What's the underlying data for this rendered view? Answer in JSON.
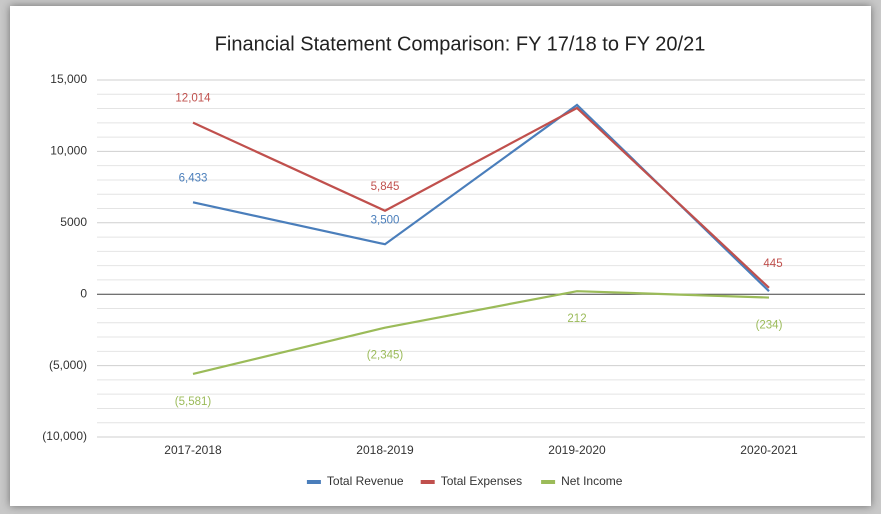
{
  "chart_data": {
    "type": "line",
    "title": "Financial Statement Comparison: FY 17/18 to FY 20/21",
    "categories": [
      "2017-2018",
      "2018-2019",
      "2019-2020",
      "2020-2021"
    ],
    "series": [
      {
        "name": "Total Revenue",
        "color": "#4a7ebb",
        "values": [
          6433,
          3500,
          13250,
          211
        ],
        "value_labels": [
          "6,433",
          "3,500",
          null,
          null
        ]
      },
      {
        "name": "Total Expenses",
        "color": "#c0504d",
        "values": [
          12014,
          5845,
          13038,
          445
        ],
        "value_labels": [
          "12,014",
          "5,845",
          null,
          "445"
        ]
      },
      {
        "name": "Net Income",
        "color": "#9bbb59",
        "values": [
          -5581,
          -2345,
          212,
          -234
        ],
        "value_labels": [
          "(5,581)",
          "(2,345)",
          "212",
          "(234)"
        ]
      }
    ],
    "ylim": [
      -10000,
      15000
    ],
    "yticks": [
      {
        "value": -10000,
        "label": "(10,000)"
      },
      {
        "value": -5000,
        "label": "(5,000)"
      },
      0,
      5000,
      {
        "value": 10000,
        "label": "10,000"
      },
      {
        "value": 15000,
        "label": "15,000"
      }
    ],
    "grid": true,
    "legend": "bottom"
  }
}
